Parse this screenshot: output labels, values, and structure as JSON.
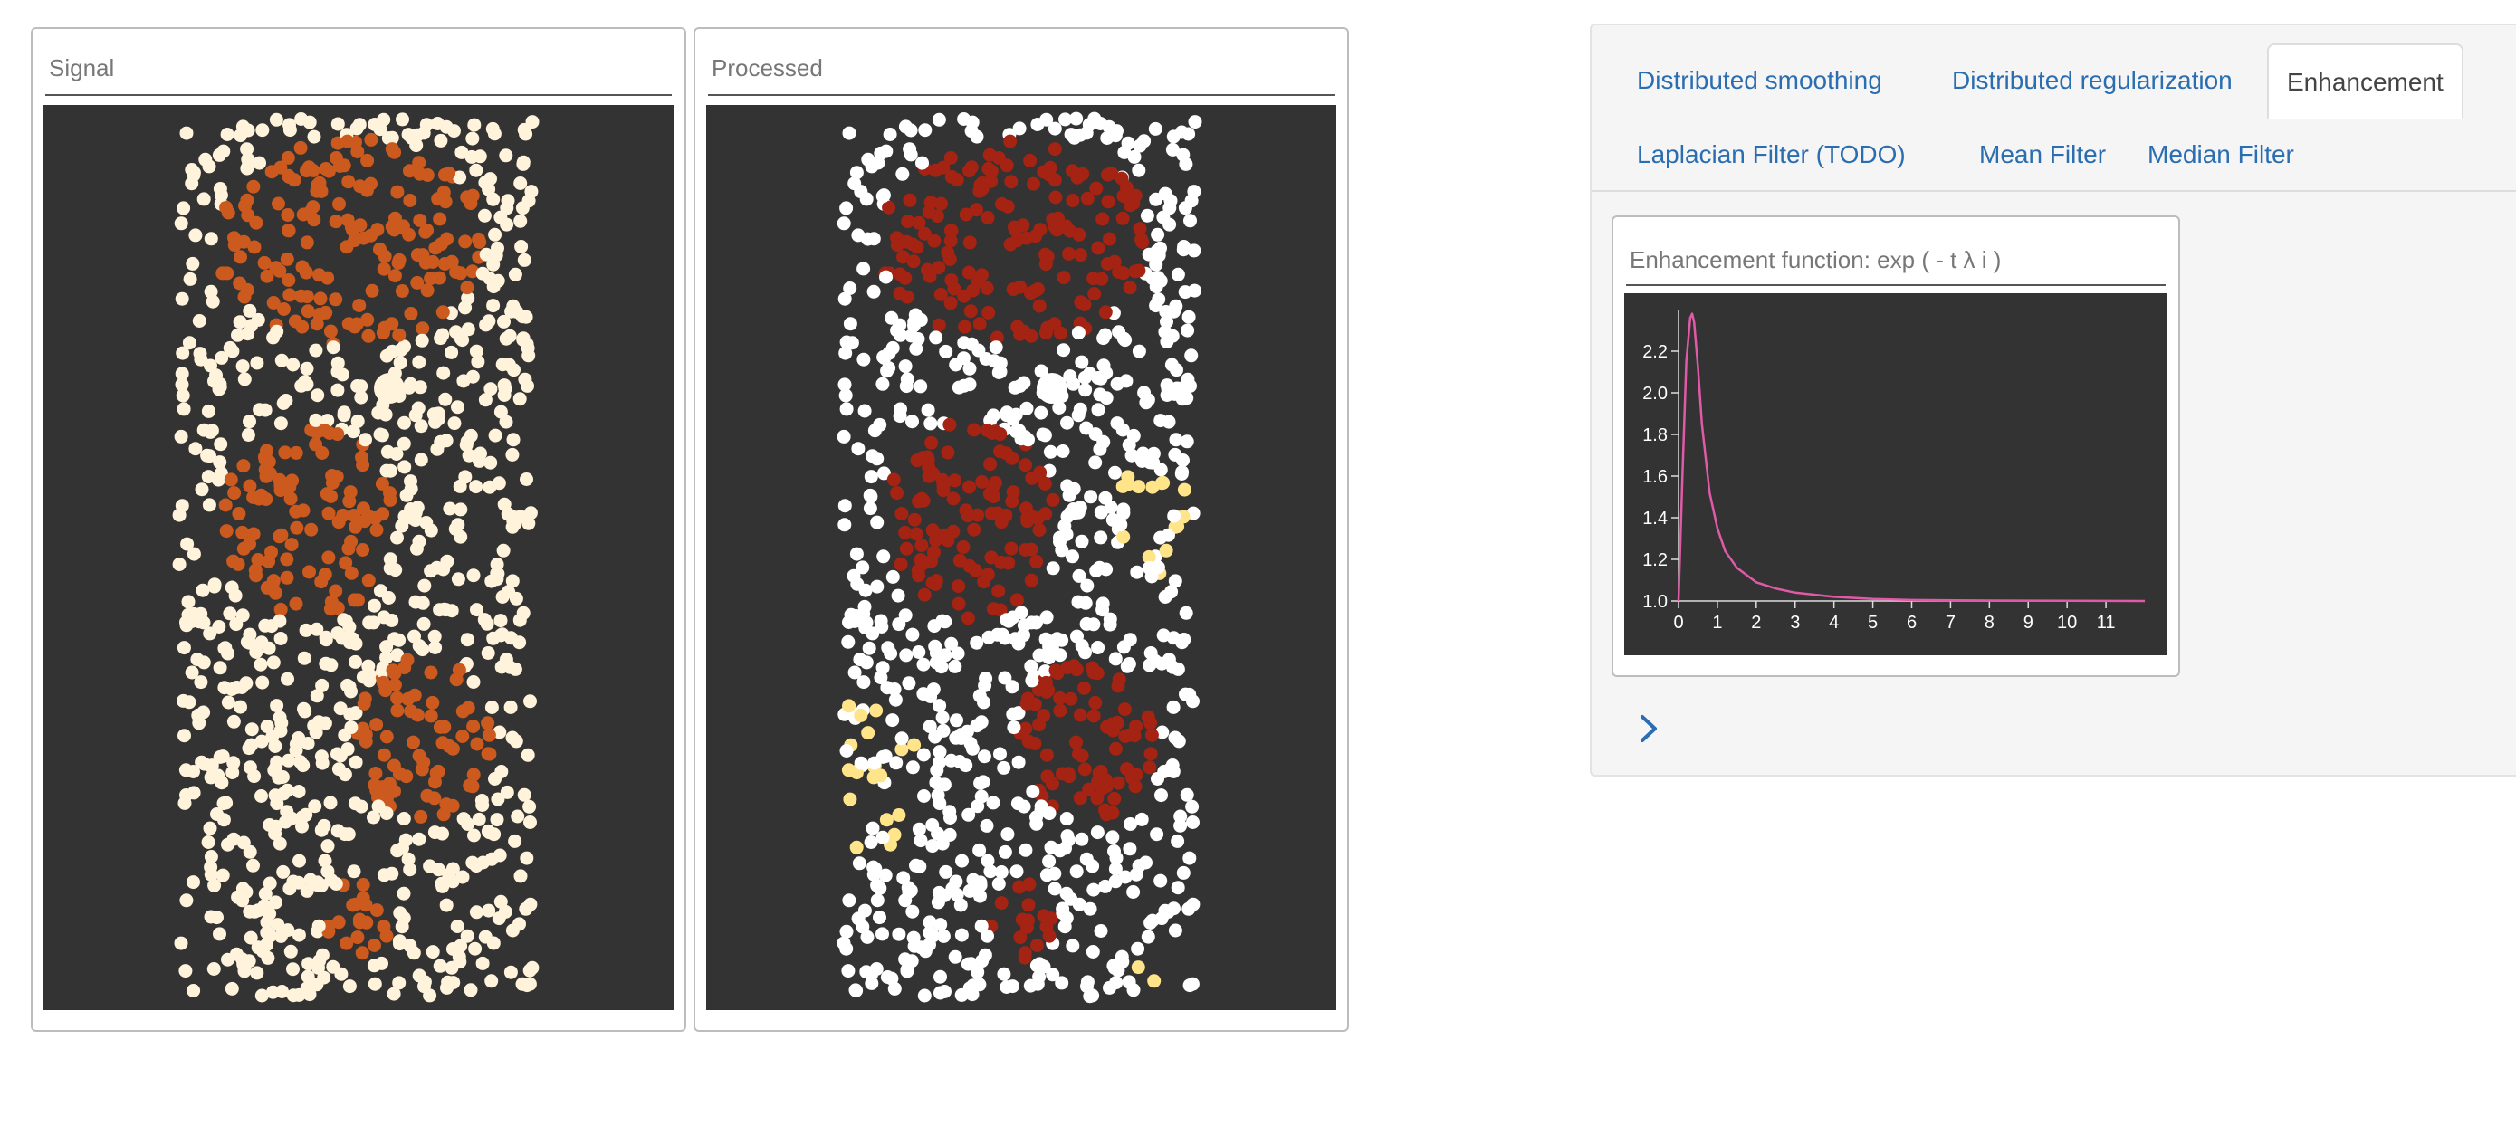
{
  "panels": {
    "signal_title": "Signal",
    "processed_title": "Processed"
  },
  "tabs": {
    "row1": [
      {
        "label": "Distributed smoothing",
        "active": false
      },
      {
        "label": "Distributed regularization",
        "active": false
      },
      {
        "label": "Enhancement",
        "active": true
      }
    ],
    "row2": [
      {
        "label": "Laplacian Filter (TODO)",
        "active": false
      },
      {
        "label": "Mean Filter",
        "active": false
      },
      {
        "label": "Median Filter",
        "active": false
      }
    ]
  },
  "enhancement": {
    "title": "Enhancement function: exp ( - t λ i )"
  },
  "expand_icon": "chevron-right-icon",
  "colors": {
    "canvas_bg": "#333333",
    "signal_points": "#fff3dc",
    "signal_regions": "#cc5a1e",
    "processed_points": "#ffffff",
    "processed_regions": "#a52312",
    "processed_highlight": "#ffe48a",
    "curve": "#e05aa8",
    "link": "#2a6db0"
  },
  "chart_data": {
    "type": "line",
    "title": "Enhancement function: exp ( - t λ i )",
    "xlabel": "",
    "ylabel": "",
    "xlim": [
      0,
      12
    ],
    "ylim": [
      1.0,
      2.4
    ],
    "x_ticks": [
      0,
      1,
      2,
      3,
      4,
      5,
      6,
      7,
      8,
      9,
      10,
      11
    ],
    "y_ticks": [
      1.0,
      1.2,
      1.4,
      1.6,
      1.8,
      2.0,
      2.2
    ],
    "series": [
      {
        "x": [
          0,
          0.1,
          0.2,
          0.3,
          0.35,
          0.4,
          0.5,
          0.6,
          0.8,
          1.0,
          1.2,
          1.5,
          2.0,
          2.5,
          3.0,
          4.0,
          5.0,
          6.0,
          8.0,
          10.0,
          12.0
        ],
        "y": [
          1.0,
          1.6,
          2.15,
          2.36,
          2.38,
          2.34,
          2.12,
          1.85,
          1.52,
          1.35,
          1.24,
          1.16,
          1.09,
          1.06,
          1.04,
          1.02,
          1.01,
          1.005,
          1.002,
          1.001,
          1.0
        ]
      }
    ]
  }
}
